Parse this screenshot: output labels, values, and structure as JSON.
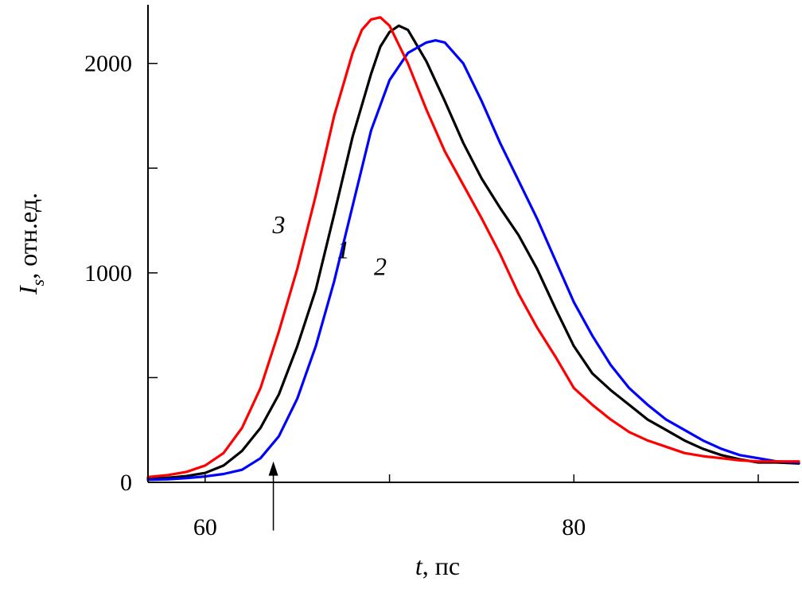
{
  "chart_data": {
    "type": "line",
    "xlabel_var": "t",
    "xlabel_unit": ", пс",
    "ylabel_var": "I",
    "ylabel_sub": "s",
    "ylabel_unit": ", отн.ед.",
    "xlim": [
      56.9,
      92.2
    ],
    "ylim": [
      0,
      2280
    ],
    "x_ticks": [
      {
        "value": 60,
        "label": "60"
      },
      {
        "value": 70,
        "label": ""
      },
      {
        "value": 80,
        "label": "80"
      },
      {
        "value": 90,
        "label": ""
      }
    ],
    "y_ticks": [
      {
        "value": 0,
        "label": "0"
      },
      {
        "value": 500,
        "label": ""
      },
      {
        "value": 1000,
        "label": "1000"
      },
      {
        "value": 1500,
        "label": ""
      },
      {
        "value": 2000,
        "label": "2000"
      }
    ],
    "grid": false,
    "series": [
      {
        "name": "1",
        "color": "#000000",
        "label_at": [
          67.5,
          1070
        ],
        "x": [
          56.9,
          58.0,
          59.0,
          60.0,
          61.0,
          62.0,
          63.0,
          64.0,
          65.0,
          66.0,
          67.0,
          68.0,
          69.0,
          69.5,
          70.0,
          70.5,
          71.0,
          72.0,
          73.0,
          74.0,
          75.0,
          76.0,
          77.0,
          78.0,
          79.0,
          80.0,
          81.0,
          82.0,
          83.0,
          84.0,
          85.0,
          86.0,
          87.0,
          88.0,
          89.0,
          90.0,
          91.0,
          92.2
        ],
        "y": [
          18,
          22,
          30,
          45,
          80,
          150,
          260,
          420,
          650,
          920,
          1280,
          1650,
          1950,
          2080,
          2150,
          2180,
          2160,
          2010,
          1820,
          1620,
          1450,
          1310,
          1180,
          1020,
          830,
          650,
          520,
          440,
          370,
          300,
          250,
          200,
          160,
          130,
          110,
          95,
          95,
          90
        ]
      },
      {
        "name": "2",
        "color": "#0000ff",
        "label_at": [
          69.5,
          990
        ],
        "x": [
          56.9,
          58.0,
          59.0,
          60.0,
          61.0,
          62.0,
          63.0,
          64.0,
          65.0,
          66.0,
          67.0,
          68.0,
          69.0,
          70.0,
          71.0,
          72.0,
          72.5,
          73.0,
          74.0,
          75.0,
          76.0,
          77.0,
          78.0,
          79.0,
          80.0,
          81.0,
          82.0,
          83.0,
          84.0,
          85.0,
          86.0,
          87.0,
          88.0,
          89.0,
          90.0,
          91.0,
          92.2
        ],
        "y": [
          12,
          15,
          20,
          28,
          40,
          60,
          115,
          220,
          400,
          650,
          960,
          1320,
          1680,
          1920,
          2050,
          2100,
          2110,
          2100,
          2000,
          1820,
          1620,
          1440,
          1260,
          1060,
          860,
          700,
          560,
          450,
          370,
          300,
          250,
          200,
          160,
          130,
          115,
          100,
          95
        ]
      },
      {
        "name": "3",
        "color": "#ff0000",
        "label_at": [
          64.0,
          1190
        ],
        "x": [
          56.9,
          58.0,
          59.0,
          60.0,
          61.0,
          62.0,
          63.0,
          64.0,
          65.0,
          66.0,
          67.0,
          68.0,
          68.5,
          69.0,
          69.5,
          70.0,
          71.0,
          72.0,
          73.0,
          74.0,
          75.0,
          76.0,
          77.0,
          78.0,
          79.0,
          80.0,
          81.0,
          82.0,
          83.0,
          84.0,
          85.0,
          86.0,
          87.0,
          88.0,
          89.0,
          90.0,
          91.0,
          92.2
        ],
        "y": [
          25,
          35,
          50,
          80,
          140,
          260,
          450,
          720,
          1020,
          1370,
          1750,
          2050,
          2160,
          2210,
          2220,
          2180,
          2000,
          1780,
          1580,
          1420,
          1260,
          1090,
          900,
          740,
          600,
          450,
          370,
          300,
          240,
          200,
          170,
          140,
          125,
          115,
          105,
          100,
          100,
          100
        ]
      }
    ],
    "annotations": [
      {
        "type": "arrow",
        "x": 63.7,
        "y_from": -230,
        "y_to": 100
      }
    ]
  }
}
